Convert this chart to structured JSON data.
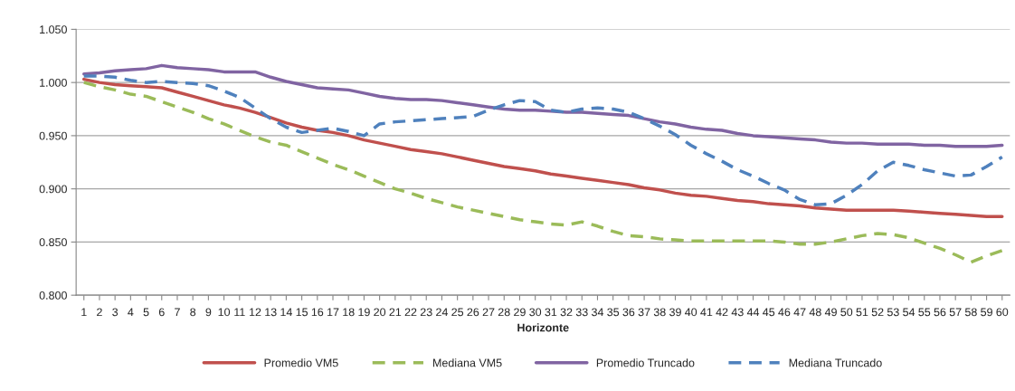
{
  "chart_data": {
    "type": "line",
    "xlabel": "Horizonte",
    "categories": [
      "1",
      "2",
      "3",
      "4",
      "5",
      "6",
      "7",
      "8",
      "9",
      "10",
      "11",
      "12",
      "13",
      "14",
      "15",
      "16",
      "17",
      "18",
      "19",
      "20",
      "21",
      "22",
      "23",
      "24",
      "25",
      "26",
      "27",
      "28",
      "29",
      "30",
      "31",
      "32",
      "33",
      "34",
      "35",
      "36",
      "37",
      "38",
      "39",
      "40",
      "41",
      "42",
      "43",
      "44",
      "45",
      "46",
      "47",
      "48",
      "49",
      "50",
      "51",
      "52",
      "53",
      "54",
      "55",
      "56",
      "57",
      "58",
      "59",
      "60"
    ],
    "ylim": [
      0.8,
      1.05
    ],
    "yticks": [
      {
        "value": 0.8,
        "label": "0.800"
      },
      {
        "value": 0.85,
        "label": "0.850"
      },
      {
        "value": 0.9,
        "label": "0.900"
      },
      {
        "value": 0.95,
        "label": "0.950"
      },
      {
        "value": 1.0,
        "label": "1.000"
      },
      {
        "value": 1.05,
        "label": "1.050"
      }
    ],
    "grid": "y",
    "legend": "bottom",
    "marker": "none",
    "series": [
      {
        "name": "Promedio VM5",
        "color": "#c0504d",
        "line_style": "solid",
        "values": [
          1.003,
          1.0,
          0.998,
          0.997,
          0.996,
          0.995,
          0.991,
          0.987,
          0.983,
          0.979,
          0.976,
          0.972,
          0.967,
          0.962,
          0.958,
          0.955,
          0.953,
          0.95,
          0.946,
          0.943,
          0.94,
          0.937,
          0.935,
          0.933,
          0.93,
          0.927,
          0.924,
          0.921,
          0.919,
          0.917,
          0.914,
          0.912,
          0.91,
          0.908,
          0.906,
          0.904,
          0.901,
          0.899,
          0.896,
          0.894,
          0.893,
          0.891,
          0.889,
          0.888,
          0.886,
          0.885,
          0.884,
          0.882,
          0.881,
          0.88,
          0.88,
          0.88,
          0.88,
          0.879,
          0.878,
          0.877,
          0.876,
          0.875,
          0.874,
          0.874
        ]
      },
      {
        "name": "Mediana VM5",
        "color": "#9bbb59",
        "line_style": "dashed",
        "values": [
          1.0,
          0.996,
          0.993,
          0.989,
          0.987,
          0.982,
          0.977,
          0.972,
          0.966,
          0.961,
          0.955,
          0.949,
          0.944,
          0.941,
          0.935,
          0.929,
          0.923,
          0.918,
          0.912,
          0.906,
          0.9,
          0.896,
          0.891,
          0.887,
          0.883,
          0.88,
          0.877,
          0.874,
          0.871,
          0.869,
          0.867,
          0.866,
          0.869,
          0.865,
          0.86,
          0.856,
          0.855,
          0.853,
          0.852,
          0.851,
          0.851,
          0.851,
          0.851,
          0.851,
          0.851,
          0.85,
          0.848,
          0.848,
          0.85,
          0.853,
          0.856,
          0.858,
          0.857,
          0.854,
          0.849,
          0.844,
          0.838,
          0.831,
          0.837,
          0.842
        ]
      },
      {
        "name": "Promedio Truncado",
        "color": "#8064a2",
        "line_style": "solid",
        "values": [
          1.008,
          1.009,
          1.011,
          1.012,
          1.013,
          1.016,
          1.014,
          1.013,
          1.012,
          1.01,
          1.01,
          1.01,
          1.005,
          1.001,
          0.998,
          0.995,
          0.994,
          0.993,
          0.99,
          0.987,
          0.985,
          0.984,
          0.984,
          0.983,
          0.981,
          0.979,
          0.977,
          0.975,
          0.974,
          0.974,
          0.973,
          0.972,
          0.972,
          0.971,
          0.97,
          0.969,
          0.966,
          0.963,
          0.961,
          0.958,
          0.956,
          0.955,
          0.952,
          0.95,
          0.949,
          0.948,
          0.947,
          0.946,
          0.944,
          0.943,
          0.943,
          0.942,
          0.942,
          0.942,
          0.941,
          0.941,
          0.94,
          0.94,
          0.94,
          0.941
        ]
      },
      {
        "name": "Mediana Truncado",
        "color": "#4f81bd",
        "line_style": "dashed",
        "values": [
          1.006,
          1.006,
          1.005,
          1.002,
          1.0,
          1.001,
          1.0,
          0.999,
          0.997,
          0.992,
          0.986,
          0.976,
          0.966,
          0.958,
          0.953,
          0.955,
          0.957,
          0.954,
          0.95,
          0.961,
          0.963,
          0.964,
          0.965,
          0.966,
          0.967,
          0.968,
          0.974,
          0.979,
          0.983,
          0.982,
          0.974,
          0.972,
          0.975,
          0.976,
          0.975,
          0.972,
          0.966,
          0.959,
          0.951,
          0.941,
          0.933,
          0.926,
          0.918,
          0.912,
          0.905,
          0.899,
          0.89,
          0.885,
          0.886,
          0.894,
          0.904,
          0.917,
          0.925,
          0.922,
          0.918,
          0.915,
          0.912,
          0.913,
          0.921,
          0.93
        ]
      }
    ]
  }
}
